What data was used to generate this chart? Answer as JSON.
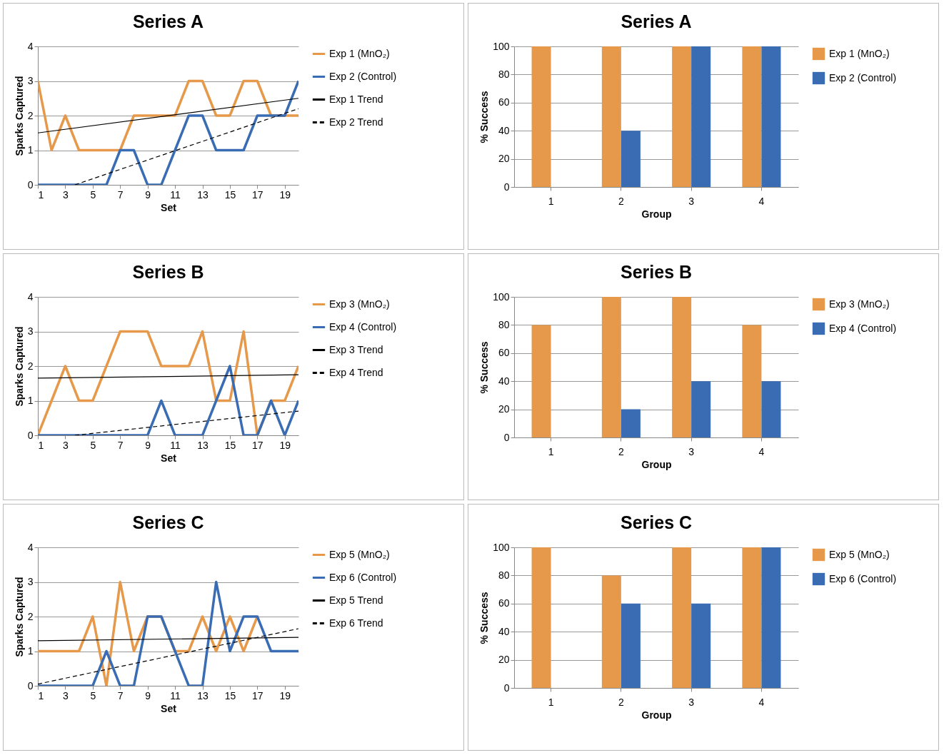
{
  "chart_data": [
    {
      "type": "line",
      "title": "Series A",
      "xlabel": "Set",
      "ylabel": "Sparks Captured",
      "x": [
        1,
        2,
        3,
        4,
        5,
        6,
        7,
        8,
        9,
        10,
        11,
        12,
        13,
        14,
        15,
        16,
        17,
        18,
        19,
        20
      ],
      "xlim": [
        1,
        20
      ],
      "xticks": [
        1,
        3,
        5,
        7,
        9,
        11,
        13,
        15,
        17,
        19
      ],
      "ylim": [
        0,
        4
      ],
      "yticks": [
        0,
        1,
        2,
        3,
        4
      ],
      "grid": "y",
      "legend": "right",
      "series": [
        {
          "name": "Exp 1 (MnO₂)",
          "color": "#e6994a",
          "values": [
            3,
            1,
            2,
            1,
            1,
            1,
            1,
            2,
            2,
            2,
            2,
            3,
            3,
            2,
            2,
            3,
            3,
            2,
            2,
            2
          ]
        },
        {
          "name": "Exp 2 (Control)",
          "color": "#3a6cb3",
          "values": [
            0,
            0,
            0,
            0,
            0,
            0,
            1,
            1,
            0,
            0,
            1,
            2,
            2,
            1,
            1,
            1,
            2,
            2,
            2,
            3
          ]
        },
        {
          "name": "Exp 1 Trend",
          "color": "#000000",
          "line_style": "solid",
          "x": [
            1,
            20
          ],
          "values": [
            1.5,
            2.5
          ]
        },
        {
          "name": "Exp 2 Trend",
          "color": "#000000",
          "line_style": "dashed",
          "x": [
            3.7,
            20
          ],
          "values": [
            0,
            2.2
          ]
        }
      ]
    },
    {
      "type": "bar",
      "title": "Series A",
      "xlabel": "Group",
      "ylabel": "% Success",
      "categories": [
        "1",
        "2",
        "3",
        "4"
      ],
      "ylim": [
        0,
        100
      ],
      "yticks": [
        0,
        20,
        40,
        60,
        80,
        100
      ],
      "grid": "y",
      "legend": "right",
      "series": [
        {
          "name": "Exp 1 (MnO₂)",
          "color": "#e6994a",
          "values": [
            100,
            100,
            100,
            100
          ]
        },
        {
          "name": "Exp 2 (Control)",
          "color": "#3a6cb3",
          "values": [
            0,
            40,
            100,
            100
          ]
        }
      ]
    },
    {
      "type": "line",
      "title": "Series B",
      "xlabel": "Set",
      "ylabel": "Sparks Captured",
      "x": [
        1,
        2,
        3,
        4,
        5,
        6,
        7,
        8,
        9,
        10,
        11,
        12,
        13,
        14,
        15,
        16,
        17,
        18,
        19,
        20
      ],
      "xlim": [
        1,
        20
      ],
      "xticks": [
        1,
        3,
        5,
        7,
        9,
        11,
        13,
        15,
        17,
        19
      ],
      "ylim": [
        0,
        4
      ],
      "yticks": [
        0,
        1,
        2,
        3,
        4
      ],
      "grid": "y",
      "legend": "right",
      "series": [
        {
          "name": "Exp 3 (MnO₂)",
          "color": "#e6994a",
          "values": [
            0,
            1,
            2,
            1,
            1,
            2,
            3,
            3,
            3,
            2,
            2,
            2,
            3,
            1,
            1,
            3,
            0,
            1,
            1,
            2
          ]
        },
        {
          "name": "Exp 4 (Control)",
          "color": "#3a6cb3",
          "values": [
            0,
            0,
            0,
            0,
            0,
            0,
            0,
            0,
            0,
            1,
            0,
            0,
            0,
            1,
            2,
            0,
            0,
            1,
            0,
            1
          ]
        },
        {
          "name": "Exp 3 Trend",
          "color": "#000000",
          "line_style": "solid",
          "x": [
            1,
            20
          ],
          "values": [
            1.65,
            1.75
          ]
        },
        {
          "name": "Exp 4 Trend",
          "color": "#000000",
          "line_style": "dashed",
          "x": [
            3.7,
            20
          ],
          "values": [
            0,
            0.7
          ]
        }
      ]
    },
    {
      "type": "bar",
      "title": "Series B",
      "xlabel": "Group",
      "ylabel": "% Success",
      "categories": [
        "1",
        "2",
        "3",
        "4"
      ],
      "ylim": [
        0,
        100
      ],
      "yticks": [
        0,
        20,
        40,
        60,
        80,
        100
      ],
      "grid": "y",
      "legend": "right",
      "series": [
        {
          "name": "Exp 3 (MnO₂)",
          "color": "#e6994a",
          "values": [
            80,
            100,
            100,
            80
          ]
        },
        {
          "name": "Exp 4 (Control)",
          "color": "#3a6cb3",
          "values": [
            0,
            20,
            40,
            40
          ]
        }
      ]
    },
    {
      "type": "line",
      "title": "Series C",
      "xlabel": "Set",
      "ylabel": "Sparks Captured",
      "x": [
        1,
        2,
        3,
        4,
        5,
        6,
        7,
        8,
        9,
        10,
        11,
        12,
        13,
        14,
        15,
        16,
        17,
        18,
        19,
        20
      ],
      "xlim": [
        1,
        20
      ],
      "xticks": [
        1,
        3,
        5,
        7,
        9,
        11,
        13,
        15,
        17,
        19
      ],
      "ylim": [
        0,
        4
      ],
      "yticks": [
        0,
        1,
        2,
        3,
        4
      ],
      "grid": "y",
      "legend": "right",
      "series": [
        {
          "name": "Exp 5 (MnO₂)",
          "color": "#e6994a",
          "values": [
            1,
            1,
            1,
            1,
            2,
            0,
            3,
            1,
            2,
            2,
            1,
            1,
            2,
            1,
            2,
            1,
            2,
            null,
            null,
            null
          ]
        },
        {
          "name": "Exp 6 (Control)",
          "color": "#3a6cb3",
          "values": [
            0,
            0,
            0,
            0,
            0,
            1,
            0,
            0,
            2,
            2,
            1,
            0,
            0,
            3,
            1,
            2,
            2,
            1,
            1,
            1
          ]
        },
        {
          "name": "Exp 5 Trend",
          "color": "#000000",
          "line_style": "solid",
          "x": [
            1,
            20
          ],
          "values": [
            1.3,
            1.4
          ]
        },
        {
          "name": "Exp 6 Trend",
          "color": "#000000",
          "line_style": "dashed",
          "x": [
            1,
            20
          ],
          "values": [
            0.05,
            1.65
          ]
        }
      ]
    },
    {
      "type": "bar",
      "title": "Series C",
      "xlabel": "Group",
      "ylabel": "% Success",
      "categories": [
        "1",
        "2",
        "3",
        "4"
      ],
      "ylim": [
        0,
        100
      ],
      "yticks": [
        0,
        20,
        40,
        60,
        80,
        100
      ],
      "grid": "y",
      "legend": "right",
      "series": [
        {
          "name": "Exp 5 (MnO₂)",
          "color": "#e6994a",
          "values": [
            100,
            80,
            100,
            100
          ]
        },
        {
          "name": "Exp 6 (Control)",
          "color": "#3a6cb3",
          "values": [
            0,
            60,
            60,
            100
          ]
        }
      ]
    }
  ]
}
